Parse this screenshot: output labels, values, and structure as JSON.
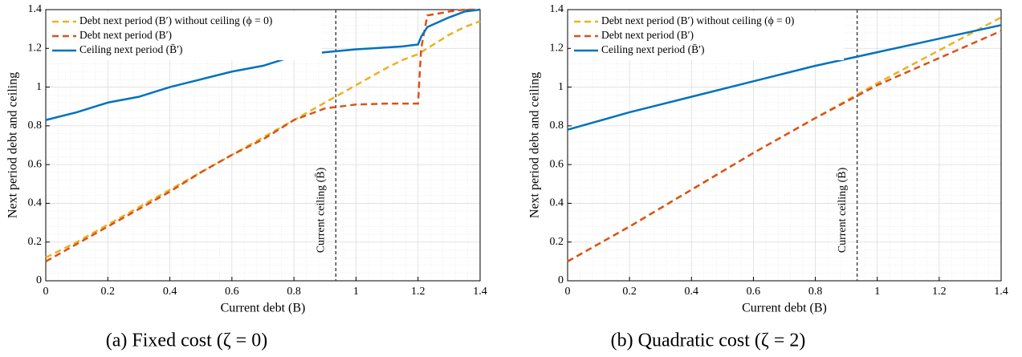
{
  "chart_data": [
    {
      "type": "line",
      "caption": "(a) Fixed cost (ζ = 0)",
      "xlabel": "Current debt (B)",
      "ylabel": "Next period debt and ceiling",
      "x": [
        0,
        0.1,
        0.2,
        0.3,
        0.4,
        0.5,
        0.6,
        0.7,
        0.8,
        0.9,
        1.0,
        1.1,
        1.15,
        1.2,
        1.21,
        1.23,
        1.3,
        1.35,
        1.4
      ],
      "series": [
        {
          "name": "Debt next period (B′) without ceiling (ϕ = 0)",
          "color": "#edb120",
          "dashed": true,
          "values": [
            0.12,
            0.2,
            0.29,
            0.38,
            0.47,
            0.56,
            0.65,
            0.74,
            0.83,
            0.92,
            1.01,
            1.1,
            1.14,
            1.17,
            1.18,
            1.2,
            1.27,
            1.31,
            1.34
          ]
        },
        {
          "name": "Debt next period (B′)",
          "color": "#d95319",
          "dashed": true,
          "values": [
            0.1,
            0.19,
            0.28,
            0.37,
            0.46,
            0.56,
            0.65,
            0.73,
            0.83,
            0.89,
            0.91,
            0.915,
            0.915,
            0.915,
            1.2,
            1.37,
            1.39,
            1.4,
            1.4
          ]
        },
        {
          "name": "Ceiling next period (B̄′)",
          "color": "#0072bd",
          "dashed": false,
          "values": [
            0.83,
            0.87,
            0.92,
            0.95,
            1.0,
            1.04,
            1.08,
            1.11,
            1.16,
            1.18,
            1.195,
            1.205,
            1.21,
            1.22,
            1.26,
            1.31,
            1.36,
            1.39,
            1.4
          ]
        }
      ],
      "xlim": [
        0,
        1.4
      ],
      "ylim": [
        0,
        1.4
      ],
      "xticks": [
        0,
        0.2,
        0.4,
        0.6,
        0.8,
        1,
        1.2,
        1.4
      ],
      "yticks": [
        0,
        0.2,
        0.4,
        0.6,
        0.8,
        1,
        1.2,
        1.4
      ],
      "grid": true,
      "minor_grid": true,
      "legend": "upper left",
      "vline": {
        "x": 0.935,
        "label": "Current ceiling (B̄)"
      }
    },
    {
      "type": "line",
      "caption": "(b) Quadratic cost (ζ = 2)",
      "xlabel": "Current debt (B)",
      "ylabel": "Next period debt and ceiling",
      "x": [
        0,
        0.2,
        0.4,
        0.6,
        0.8,
        1.0,
        1.2,
        1.4
      ],
      "series": [
        {
          "name": "Debt next period (B′) without ceiling (ϕ = 0)",
          "color": "#edb120",
          "dashed": true,
          "values": [
            0.1,
            0.28,
            0.47,
            0.66,
            0.84,
            1.02,
            1.19,
            1.36
          ]
        },
        {
          "name": "Debt next period (B′)",
          "color": "#d95319",
          "dashed": true,
          "values": [
            0.1,
            0.28,
            0.47,
            0.66,
            0.84,
            1.01,
            1.15,
            1.29
          ]
        },
        {
          "name": "Ceiling next period (B̄′)",
          "color": "#0072bd",
          "dashed": false,
          "values": [
            0.78,
            0.87,
            0.95,
            1.03,
            1.11,
            1.18,
            1.25,
            1.32
          ]
        }
      ],
      "xlim": [
        0,
        1.4
      ],
      "ylim": [
        0,
        1.4
      ],
      "xticks": [
        0,
        0.2,
        0.4,
        0.6,
        0.8,
        1,
        1.2,
        1.4
      ],
      "yticks": [
        0,
        0.2,
        0.4,
        0.6,
        0.8,
        1,
        1.2,
        1.4
      ],
      "grid": true,
      "minor_grid": true,
      "legend": "upper left",
      "vline": {
        "x": 0.935,
        "label": "Current ceiling (B̄)"
      }
    }
  ]
}
